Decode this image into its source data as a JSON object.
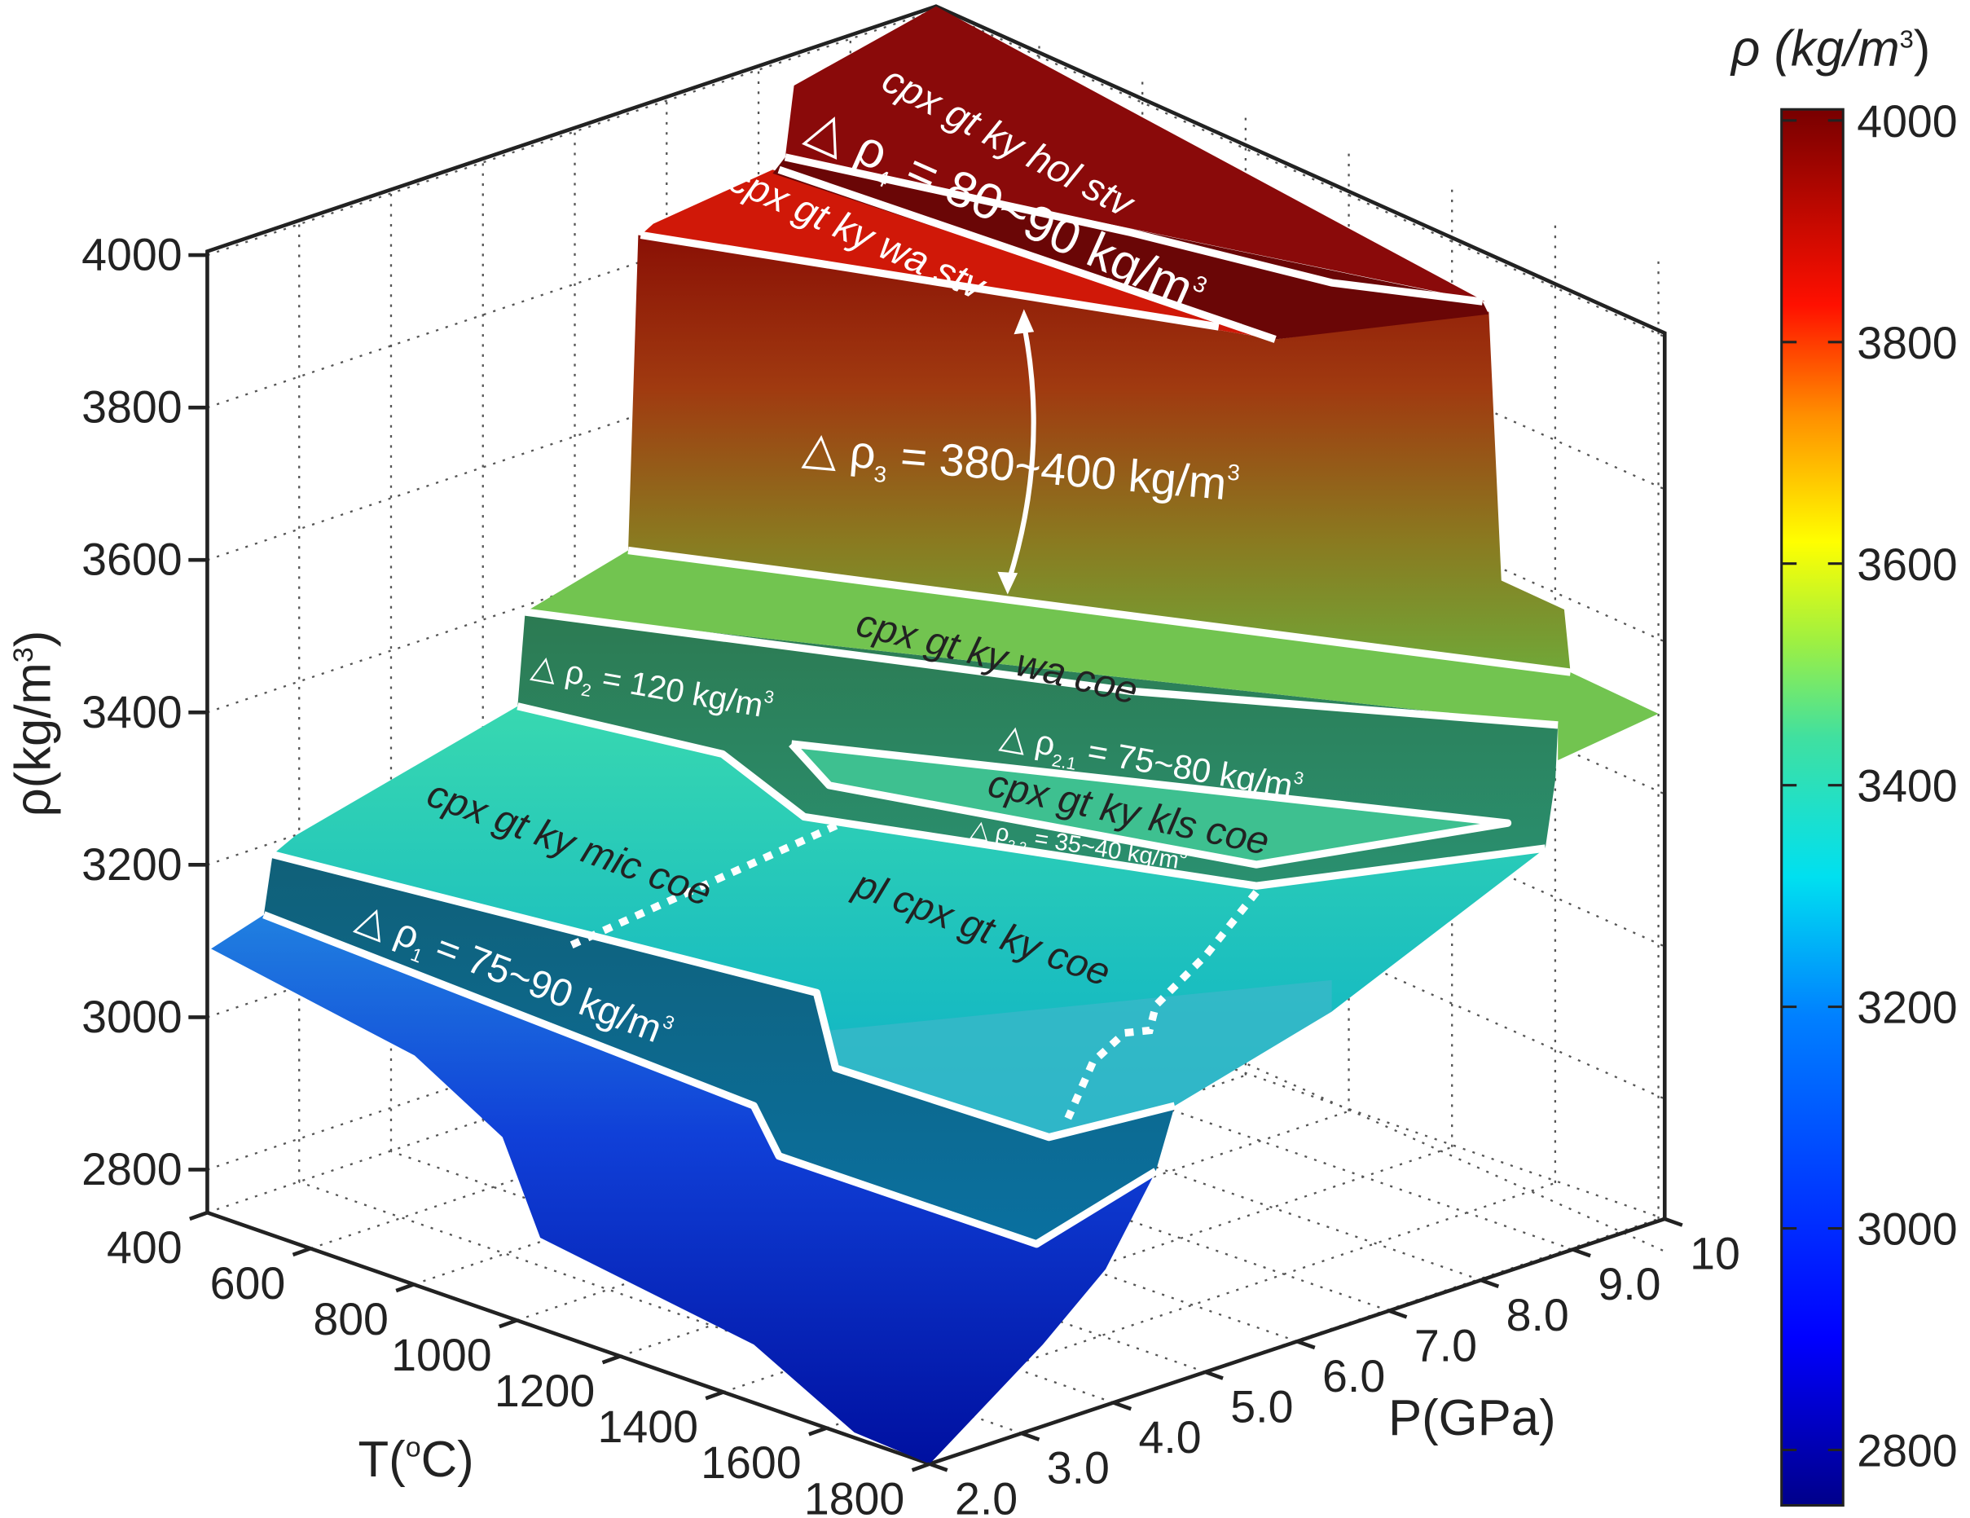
{
  "chart_data": {
    "type": "surface",
    "zlabel": {
      "text": "ρ(kg/m",
      "sup": "3",
      "close": ")"
    },
    "xlabel": {
      "text": "T(",
      "sup": "o",
      "close": "C)"
    },
    "ylabel": "P(GPa)",
    "z_ticks": [
      "4000",
      "3800",
      "3600",
      "3400",
      "3200",
      "3000",
      "2800"
    ],
    "t_ticks": [
      "400",
      "600",
      "800",
      "1000",
      "1200",
      "1400",
      "1600",
      "1800"
    ],
    "p_ticks": [
      "2.0",
      "3.0",
      "4.0",
      "5.0",
      "6.0",
      "7.0",
      "8.0",
      "9.0",
      "10"
    ],
    "zlim": [
      2700,
      4000
    ],
    "tlim": [
      400,
      1800
    ],
    "plim": [
      2.0,
      10
    ],
    "grid": true,
    "colormap": "jet",
    "colorbar": {
      "title": {
        "text": "ρ (kg/m",
        "sup": "3",
        "close": ")"
      },
      "ticks": [
        "4000",
        "3800",
        "3600",
        "3400",
        "3200",
        "3000",
        "2800"
      ],
      "range": [
        2750,
        4010
      ],
      "placement": "right"
    },
    "phase_fields": [
      "cpx gt ky hol stv",
      "cpx gt ky wa stv",
      "cpx gt ky wa coe",
      "cpx gt ky kls coe",
      "cpx gt ky mic coe",
      "pl cpx gt ky coe"
    ],
    "density_jumps": [
      {
        "pre": "△ ρ",
        "sub": "4",
        "text": " = 80~90 kg/m",
        "sup": "3"
      },
      {
        "pre": "△ ρ",
        "sub": "3",
        "text": " = 380~400 kg/m",
        "sup": "3"
      },
      {
        "pre": "△ ρ",
        "sub": "2",
        "text": " = 120 kg/m",
        "sup": "3"
      },
      {
        "pre": "△ ρ",
        "sub": "2.1",
        "text": " = 75~80 kg/m",
        "sup": "3"
      },
      {
        "pre": "△ ρ",
        "sub": "2.2",
        "text": " = 35~40 kg/m",
        "sup": "3"
      },
      {
        "pre": "△ ρ",
        "sub": "1",
        "text": " = 75~90 kg/m",
        "sup": "3"
      }
    ]
  }
}
